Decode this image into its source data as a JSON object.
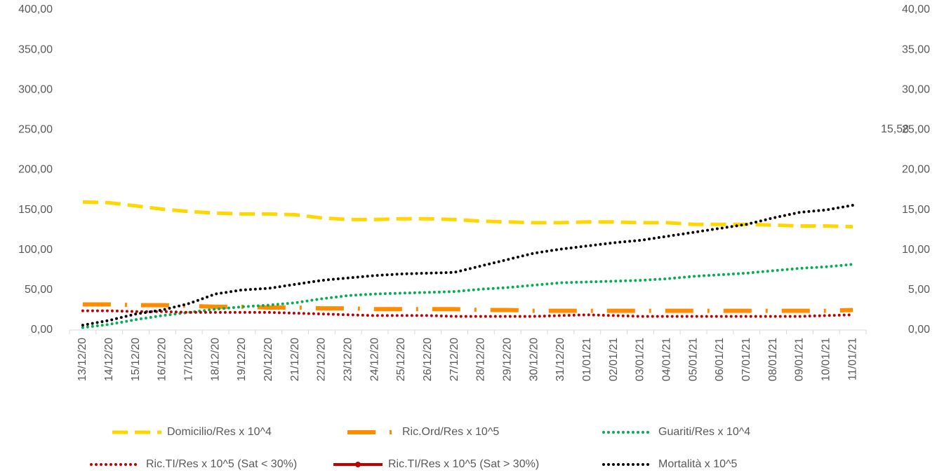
{
  "chart_data": {
    "type": "line",
    "categories": [
      "13/12/20",
      "14/12/20",
      "15/12/20",
      "16/12/20",
      "17/12/20",
      "18/12/20",
      "19/12/20",
      "20/12/20",
      "21/12/20",
      "22/12/20",
      "23/12/20",
      "24/12/20",
      "25/12/20",
      "26/12/20",
      "27/12/20",
      "28/12/20",
      "29/12/20",
      "30/12/20",
      "31/12/20",
      "01/01/21",
      "02/01/21",
      "03/01/21",
      "04/01/21",
      "05/01/21",
      "06/01/21",
      "07/01/21",
      "08/01/21",
      "09/01/21",
      "10/01/21",
      "11/01/21"
    ],
    "series": [
      {
        "name": "Domicilio/Res x 10^4",
        "color": "#FFD700",
        "dash": "dashed",
        "values": [
          160,
          159,
          155,
          151,
          148,
          146,
          145,
          145,
          144,
          140,
          138,
          138,
          139,
          139,
          138,
          136,
          135,
          134,
          134,
          135,
          135,
          134,
          134,
          132,
          132,
          132,
          131,
          130,
          130,
          129
        ]
      },
      {
        "name": "Ric.Ord/Res x 10^5",
        "color": "#FF8C00",
        "dash": "longdashdot",
        "values": [
          32,
          32,
          31,
          31,
          30,
          29,
          29,
          28,
          28,
          27,
          27,
          26,
          26,
          26,
          26,
          25,
          25,
          24,
          24,
          24,
          24,
          24,
          24,
          24,
          24,
          24,
          24,
          24,
          24,
          25
        ]
      },
      {
        "name": "Guariti/Res x 10^4",
        "color": "#00B050",
        "dash": "dotted",
        "values": [
          3,
          7,
          13,
          18,
          22,
          26,
          29,
          31,
          34,
          39,
          43,
          45,
          46,
          47,
          48,
          51,
          53,
          56,
          59,
          60,
          61,
          62,
          64,
          67,
          69,
          71,
          74,
          77,
          79,
          82
        ]
      },
      {
        "name": "Ric.TI/Res x 10^5 (Sat < 30%)",
        "color": "#C00000",
        "dash": "dotted",
        "values": [
          24,
          24,
          23,
          23,
          22,
          22,
          22,
          22,
          21,
          20,
          19,
          18,
          18,
          18,
          17,
          17,
          17,
          17,
          18,
          19,
          18,
          17,
          17,
          17,
          17,
          17,
          17,
          17,
          18,
          19
        ]
      },
      {
        "name": "Ric.TI/Res x 10^5 (Sat > 30%)",
        "color": "#C00000",
        "dash": "solid",
        "marker": true,
        "values": [
          null,
          null,
          null,
          null,
          null,
          null,
          null,
          null,
          null,
          null,
          null,
          null,
          null,
          null,
          null,
          null,
          null,
          null,
          null,
          null,
          null,
          null,
          null,
          null,
          null,
          null,
          null,
          null,
          null,
          null
        ]
      },
      {
        "name": "Mortalità x 10^5",
        "color": "#000000",
        "dash": "dotted",
        "axis": "y2",
        "values": [
          0.6,
          1.2,
          2.0,
          2.5,
          3.3,
          4.5,
          5.0,
          5.2,
          5.7,
          6.2,
          6.5,
          6.8,
          7.0,
          7.1,
          7.2,
          8.0,
          8.8,
          9.6,
          10.1,
          10.5,
          10.9,
          11.2,
          11.7,
          12.2,
          12.7,
          13.2,
          14.0,
          14.7,
          15.0,
          15.58
        ]
      }
    ],
    "annotation": "15,58",
    "ylim": [
      0,
      400
    ],
    "yticks": [
      {
        "value": 0,
        "label": "0,00"
      },
      {
        "value": 50,
        "label": "50,00"
      },
      {
        "value": 100,
        "label": "100,00"
      },
      {
        "value": 150,
        "label": "150,00"
      },
      {
        "value": 200,
        "label": "200,00"
      },
      {
        "value": 250,
        "label": "250,00"
      },
      {
        "value": 300,
        "label": "300,00"
      },
      {
        "value": 350,
        "label": "350,00"
      },
      {
        "value": 400,
        "label": "400,00"
      }
    ],
    "y2lim": [
      0,
      40
    ],
    "y2ticks": [
      {
        "value": 0,
        "label": "0,00"
      },
      {
        "value": 5,
        "label": "5,00"
      },
      {
        "value": 10,
        "label": "10,00"
      },
      {
        "value": 15,
        "label": "15,00"
      },
      {
        "value": 20,
        "label": "20,00"
      },
      {
        "value": 25,
        "label": "25,00"
      },
      {
        "value": 30,
        "label": "30,00"
      },
      {
        "value": 35,
        "label": "35,00"
      },
      {
        "value": 40,
        "label": "40,00"
      }
    ],
    "legend": "bottom"
  }
}
